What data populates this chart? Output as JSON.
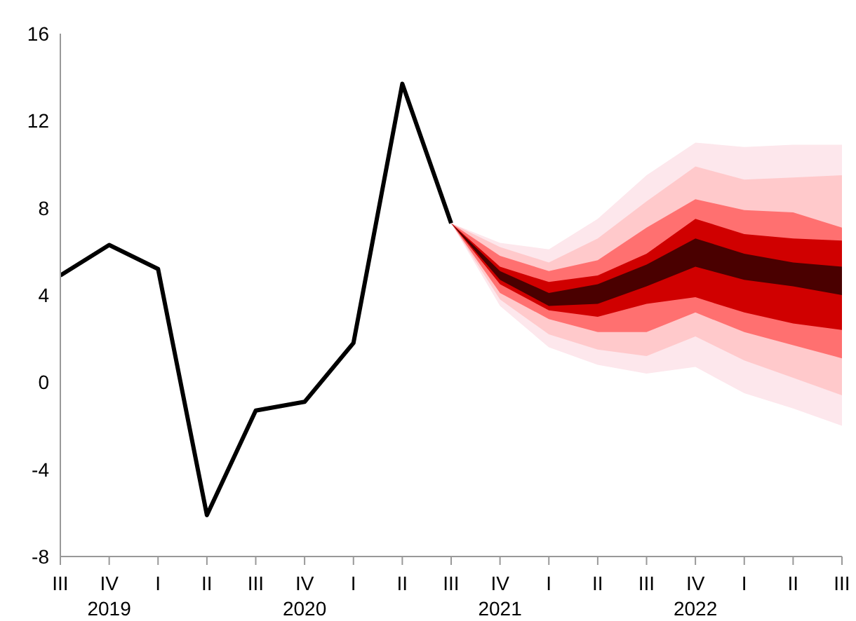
{
  "chart_data": {
    "type": "line",
    "categories": [
      "III",
      "IV\n2019",
      "I",
      "II",
      "III",
      "IV\n2020",
      "I",
      "II",
      "III",
      "IV\n2021",
      "I",
      "II",
      "III",
      "IV\n2022",
      "I",
      "II",
      "III"
    ],
    "series": [
      {
        "color": "#000000",
        "values": [
          4.9,
          6.3,
          5.2,
          -6.1,
          -1.3,
          -0.9,
          1.8,
          13.7,
          7.3,
          null,
          null,
          null,
          null,
          null,
          null,
          null,
          null
        ]
      },
      {
        "type": "area",
        "color": "#fde7ec",
        "values": [
          null,
          null,
          null,
          null,
          null,
          null,
          null,
          null,
          null,
          null,
          null,
          null,
          null,
          null,
          null,
          null,
          null
        ],
        "lower": [
          null,
          null,
          null,
          null,
          null,
          null,
          null,
          null,
          7.3,
          3.5,
          1.6,
          0.8,
          0.4,
          0.7,
          -0.5,
          -1.2,
          -2.0
        ],
        "upper": [
          null,
          null,
          null,
          null,
          null,
          null,
          null,
          null,
          7.3,
          6.4,
          6.1,
          7.5,
          9.5,
          11.0,
          10.8,
          10.9,
          10.9
        ]
      },
      {
        "type": "area",
        "color": "#ffc9cb",
        "values": [
          null,
          null,
          null,
          null,
          null,
          null,
          null,
          null,
          null,
          null,
          null,
          null,
          null,
          null,
          null,
          null,
          null
        ],
        "lower": [
          null,
          null,
          null,
          null,
          null,
          null,
          null,
          null,
          7.3,
          3.8,
          2.2,
          1.5,
          1.2,
          2.1,
          1.0,
          0.2,
          -0.6
        ],
        "upper": [
          null,
          null,
          null,
          null,
          null,
          null,
          null,
          null,
          7.3,
          6.2,
          5.5,
          6.6,
          8.3,
          9.9,
          9.3,
          9.4,
          9.5
        ]
      },
      {
        "type": "area",
        "color": "#ff7070",
        "values": [
          null,
          null,
          null,
          null,
          null,
          null,
          null,
          null,
          null,
          null,
          null,
          null,
          null,
          null,
          null,
          null,
          null
        ],
        "lower": [
          null,
          null,
          null,
          null,
          null,
          null,
          null,
          null,
          7.3,
          4.1,
          2.9,
          2.3,
          2.3,
          3.2,
          2.3,
          1.7,
          1.1
        ],
        "upper": [
          null,
          null,
          null,
          null,
          null,
          null,
          null,
          null,
          7.3,
          5.8,
          5.1,
          5.6,
          7.1,
          8.4,
          7.9,
          7.8,
          7.1
        ]
      },
      {
        "type": "area",
        "color": "#d00000",
        "values": [
          null,
          null,
          null,
          null,
          null,
          null,
          null,
          null,
          null,
          null,
          null,
          null,
          null,
          null,
          null,
          null,
          null
        ],
        "lower": [
          null,
          null,
          null,
          null,
          null,
          null,
          null,
          null,
          7.3,
          4.5,
          3.3,
          3.0,
          3.6,
          3.9,
          3.2,
          2.7,
          2.4
        ],
        "upper": [
          null,
          null,
          null,
          null,
          null,
          null,
          null,
          null,
          7.3,
          5.3,
          4.6,
          4.9,
          5.9,
          7.5,
          6.8,
          6.6,
          6.5
        ]
      },
      {
        "type": "area",
        "color": "#4a0000",
        "values": [
          null,
          null,
          null,
          null,
          null,
          null,
          null,
          null,
          null,
          null,
          null,
          null,
          null,
          null,
          null,
          null,
          null
        ],
        "lower": [
          null,
          null,
          null,
          null,
          null,
          null,
          null,
          null,
          7.3,
          4.7,
          3.5,
          3.6,
          4.4,
          5.3,
          4.7,
          4.4,
          4.0
        ],
        "upper": [
          null,
          null,
          null,
          null,
          null,
          null,
          null,
          null,
          7.3,
          5.1,
          4.1,
          4.5,
          5.4,
          6.6,
          5.9,
          5.5,
          5.3
        ]
      }
    ],
    "ylim": [
      -8,
      16
    ],
    "yticks": [
      -8,
      -4,
      0,
      4,
      8,
      12,
      16
    ],
    "marker": "none",
    "line_style": "solid"
  }
}
